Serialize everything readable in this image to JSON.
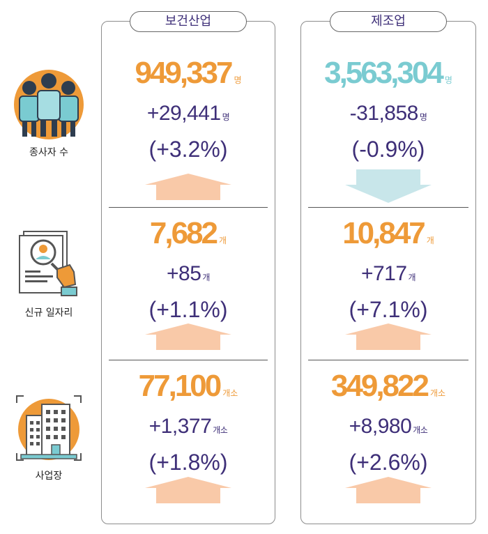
{
  "columns": [
    {
      "title": "보건산업"
    },
    {
      "title": "제조업"
    }
  ],
  "rows": [
    {
      "label": "종사자 수",
      "icon": "people-icon"
    },
    {
      "label": "신규 일자리",
      "icon": "job-search-icon"
    },
    {
      "label": "사업장",
      "icon": "building-icon"
    }
  ],
  "cells": {
    "health": [
      {
        "value": "949,337",
        "unit": "명",
        "change": "+29,441",
        "change_unit": "명",
        "pct": "(+3.2%)",
        "trend": "up"
      },
      {
        "value": "7,682",
        "unit": "개",
        "change": "+85",
        "change_unit": "개",
        "pct": "(+1.1%)",
        "trend": "up"
      },
      {
        "value": "77,100",
        "unit": "개소",
        "change": "+1,377",
        "change_unit": "개소",
        "pct": "(+1.8%)",
        "trend": "up"
      }
    ],
    "manufacturing": [
      {
        "value": "3,563,304",
        "unit": "명",
        "change": "-31,858",
        "change_unit": "명",
        "pct": "(-0.9%)",
        "trend": "down"
      },
      {
        "value": "10,847",
        "unit": "개",
        "change": "+717",
        "change_unit": "개",
        "pct": "(+7.1%)",
        "trend": "up"
      },
      {
        "value": "349,822",
        "unit": "개소",
        "change": "+8,980",
        "change_unit": "개소",
        "pct": "(+2.6%)",
        "trend": "up"
      }
    ]
  },
  "colors": {
    "value_orange": "#ee9a38",
    "value_teal": "#7acbd1",
    "text_purple": "#3e2f78",
    "arrow_up": "#f9c9a8",
    "arrow_down": "#c8e6ea",
    "icon_orange": "#ee9a38"
  }
}
